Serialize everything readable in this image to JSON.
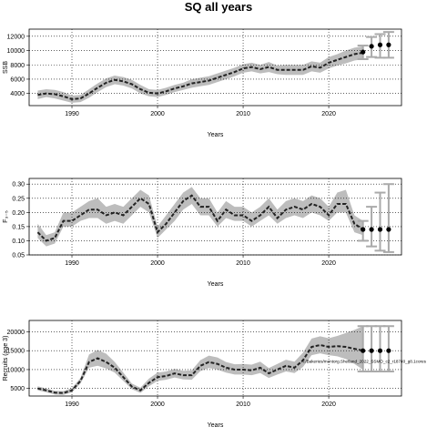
{
  "title": "SQ all years",
  "annotation": "A:/Bakeries/mentorg.Shetland_2022_SSMO_c2_r18740_g8.1cores",
  "chart_data": [
    {
      "type": "line",
      "ylabel": "SSB",
      "xlabel": "Years",
      "xlim": [
        1985,
        2028.5
      ],
      "ylim": [
        2300,
        13000
      ],
      "xticks": [
        1990,
        2000,
        2010,
        2020
      ],
      "yticks": [
        4000,
        6000,
        8000,
        10000,
        12000
      ],
      "x": [
        1986,
        1987,
        1988,
        1989,
        1990,
        1991,
        1992,
        1993,
        1994,
        1995,
        1996,
        1997,
        1998,
        1999,
        2000,
        2001,
        2002,
        2003,
        2004,
        2005,
        2006,
        2007,
        2008,
        2009,
        2010,
        2011,
        2012,
        2013,
        2014,
        2015,
        2016,
        2017,
        2018,
        2019,
        2020,
        2021,
        2022,
        2023,
        2024
      ],
      "y": [
        3800,
        4000,
        3900,
        3600,
        3200,
        3300,
        4000,
        4800,
        5500,
        5900,
        5700,
        5300,
        4600,
        4100,
        4000,
        4300,
        4700,
        5000,
        5400,
        5600,
        5800,
        6200,
        6600,
        7000,
        7500,
        7700,
        7400,
        7700,
        7300,
        7300,
        7300,
        7300,
        7800,
        7600,
        8300,
        8700,
        9100,
        9500,
        9700
      ],
      "lower": [
        3200,
        3500,
        3300,
        3000,
        2700,
        2800,
        3400,
        4200,
        4900,
        5300,
        5100,
        4700,
        4000,
        3600,
        3500,
        3800,
        4200,
        4500,
        4800,
        5000,
        5200,
        5600,
        6000,
        6400,
        6900,
        7100,
        6800,
        7000,
        6700,
        6600,
        6600,
        6600,
        7100,
        6900,
        7500,
        7900,
        8200,
        8600,
        8800
      ],
      "upper": [
        4400,
        4600,
        4500,
        4200,
        3700,
        3800,
        4600,
        5400,
        6100,
        6500,
        6300,
        5900,
        5200,
        4600,
        4500,
        4800,
        5200,
        5500,
        6000,
        6200,
        6400,
        6800,
        7200,
        7600,
        8100,
        8300,
        8000,
        8400,
        7900,
        8000,
        8000,
        8000,
        8500,
        8300,
        9100,
        9500,
        10000,
        10400,
        10600
      ],
      "projection": {
        "x": [
          2024,
          2025,
          2026,
          2027
        ],
        "y": [
          9800,
          10600,
          10800,
          10800
        ],
        "lower": [
          8800,
          9100,
          9000,
          9000
        ],
        "upper": [
          10700,
          11900,
          12300,
          12600
        ]
      }
    },
    {
      "type": "line",
      "ylabel": "F₃₋₅",
      "xlabel": "Years",
      "xlim": [
        1985,
        2028.5
      ],
      "ylim": [
        0.05,
        0.32
      ],
      "xticks": [
        1990,
        2000,
        2010,
        2020
      ],
      "yticks": [
        0.05,
        0.1,
        0.15,
        0.2,
        0.25,
        0.3
      ],
      "ytick_labels": [
        "0.05",
        "0.10",
        "0.15",
        "0.20",
        "0.25",
        "0.30"
      ],
      "x": [
        1986,
        1987,
        1988,
        1989,
        1990,
        1991,
        1992,
        1993,
        1994,
        1995,
        1996,
        1997,
        1998,
        1999,
        2000,
        2001,
        2002,
        2003,
        2004,
        2005,
        2006,
        2007,
        2008,
        2009,
        2010,
        2011,
        2012,
        2013,
        2014,
        2015,
        2016,
        2017,
        2018,
        2019,
        2020,
        2021,
        2022,
        2023,
        2024
      ],
      "y": [
        0.13,
        0.1,
        0.11,
        0.17,
        0.17,
        0.19,
        0.21,
        0.21,
        0.19,
        0.2,
        0.19,
        0.22,
        0.25,
        0.23,
        0.13,
        0.16,
        0.2,
        0.24,
        0.26,
        0.22,
        0.22,
        0.17,
        0.21,
        0.19,
        0.19,
        0.17,
        0.19,
        0.22,
        0.18,
        0.21,
        0.22,
        0.21,
        0.23,
        0.22,
        0.19,
        0.23,
        0.23,
        0.16,
        0.14
      ],
      "lower": [
        0.11,
        0.08,
        0.09,
        0.15,
        0.15,
        0.17,
        0.18,
        0.18,
        0.16,
        0.17,
        0.16,
        0.19,
        0.22,
        0.2,
        0.11,
        0.14,
        0.17,
        0.21,
        0.23,
        0.19,
        0.19,
        0.15,
        0.18,
        0.17,
        0.17,
        0.15,
        0.17,
        0.19,
        0.16,
        0.18,
        0.19,
        0.18,
        0.2,
        0.19,
        0.17,
        0.2,
        0.2,
        0.13,
        0.12
      ],
      "upper": [
        0.16,
        0.12,
        0.13,
        0.2,
        0.2,
        0.22,
        0.24,
        0.25,
        0.22,
        0.23,
        0.22,
        0.25,
        0.28,
        0.26,
        0.15,
        0.19,
        0.23,
        0.27,
        0.29,
        0.25,
        0.25,
        0.2,
        0.24,
        0.22,
        0.22,
        0.2,
        0.22,
        0.25,
        0.21,
        0.24,
        0.25,
        0.24,
        0.26,
        0.25,
        0.22,
        0.27,
        0.28,
        0.19,
        0.17
      ],
      "projection": {
        "x": [
          2024,
          2025,
          2026,
          2027
        ],
        "y": [
          0.14,
          0.14,
          0.14,
          0.14
        ],
        "lower": [
          0.1,
          0.08,
          0.065,
          0.06
        ],
        "upper": [
          0.17,
          0.22,
          0.27,
          0.3
        ]
      }
    },
    {
      "type": "line",
      "ylabel": "Recruits (age 3)",
      "xlabel": "Years",
      "xlim": [
        1985,
        2028.5
      ],
      "ylim": [
        3000,
        23000
      ],
      "xticks": [
        1990,
        2000,
        2010,
        2020
      ],
      "yticks": [
        5000,
        10000,
        15000,
        20000
      ],
      "x": [
        1986,
        1987,
        1988,
        1989,
        1990,
        1991,
        1992,
        1993,
        1994,
        1995,
        1996,
        1997,
        1998,
        1999,
        2000,
        2001,
        2002,
        2003,
        2004,
        2005,
        2006,
        2007,
        2008,
        2009,
        2010,
        2011,
        2012,
        2013,
        2014,
        2015,
        2016,
        2017,
        2018,
        2019,
        2020,
        2021,
        2022,
        2023,
        2024
      ],
      "y": [
        5000,
        4500,
        3900,
        3800,
        4500,
        7000,
        12000,
        13000,
        12000,
        10500,
        8000,
        5500,
        4500,
        6500,
        8000,
        8300,
        9000,
        8500,
        8500,
        11000,
        12000,
        11500,
        10500,
        10000,
        10000,
        9800,
        10500,
        9000,
        10000,
        11000,
        10500,
        12500,
        16000,
        16500,
        16000,
        16200,
        16000,
        15500,
        15000
      ],
      "lower": [
        4500,
        4000,
        3400,
        3300,
        4000,
        6300,
        10500,
        11000,
        10300,
        9200,
        7000,
        4800,
        3800,
        5600,
        7000,
        7300,
        7900,
        7400,
        7300,
        9600,
        10400,
        10000,
        9200,
        8700,
        8700,
        8500,
        9100,
        7800,
        8700,
        9500,
        9100,
        10700,
        13800,
        14300,
        13800,
        13500,
        12800,
        11500,
        10000
      ],
      "upper": [
        5600,
        5000,
        4400,
        4300,
        5100,
        7800,
        14000,
        15200,
        14200,
        12000,
        9200,
        6300,
        5200,
        7600,
        9200,
        9500,
        10200,
        9700,
        9800,
        12500,
        13700,
        13200,
        12000,
        11400,
        11500,
        11300,
        12100,
        10400,
        11500,
        12600,
        12100,
        14500,
        18200,
        18800,
        18300,
        18900,
        19700,
        20500,
        21500
      ],
      "projection": {
        "x": [
          2024,
          2025,
          2026,
          2027
        ],
        "y": [
          15000,
          15000,
          15000,
          15000
        ],
        "lower": [
          9500,
          9500,
          9500,
          9500
        ],
        "upper": [
          21500,
          21500,
          21500,
          21500
        ]
      }
    }
  ]
}
